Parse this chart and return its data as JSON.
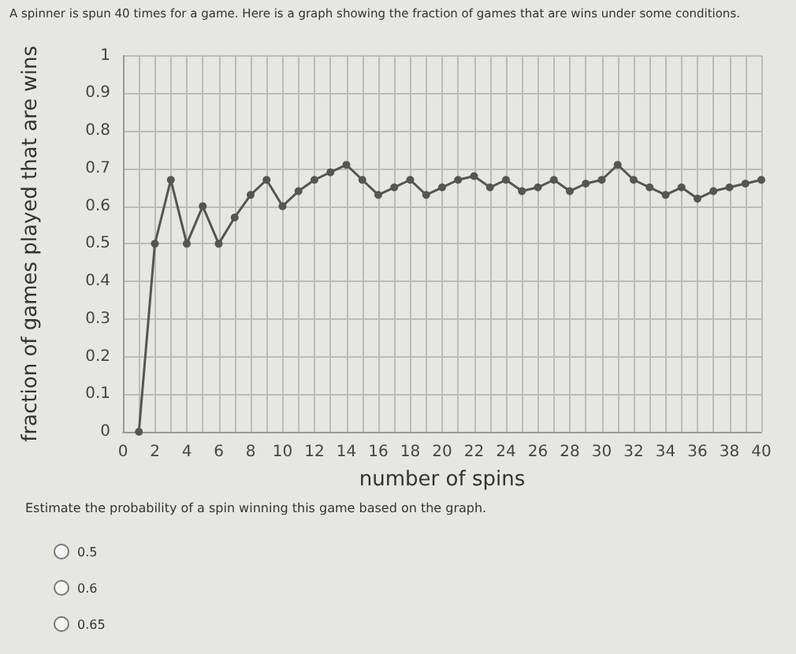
{
  "chart_data": {
    "type": "line",
    "title": "A spinner is spun 40 times for a game. Here is a graph showing the fraction of games that are wins under some conditions.",
    "xlabel": "number of spins",
    "ylabel": "fraction of games played that are wins",
    "x": [
      1,
      2,
      3,
      4,
      5,
      6,
      7,
      8,
      9,
      10,
      11,
      12,
      13,
      14,
      15,
      16,
      17,
      18,
      19,
      20,
      21,
      22,
      23,
      24,
      25,
      26,
      27,
      28,
      29,
      30,
      31,
      32,
      33,
      34,
      35,
      36,
      37,
      38,
      39,
      40
    ],
    "series": [
      {
        "color": "#555555",
        "values": [
          0,
          0.5,
          0.67,
          0.5,
          0.6,
          0.5,
          0.57,
          0.63,
          0.67,
          0.6,
          0.64,
          0.67,
          0.69,
          0.71,
          0.67,
          0.63,
          0.65,
          0.67,
          0.63,
          0.65,
          0.67,
          0.68,
          0.65,
          0.67,
          0.64,
          0.65,
          0.67,
          0.64,
          0.66,
          0.67,
          0.71,
          0.67,
          0.65,
          0.63,
          0.65,
          0.62,
          0.64,
          0.65,
          0.66,
          0.67
        ]
      }
    ],
    "xlim": [
      0,
      40
    ],
    "xticks": [
      0,
      2,
      4,
      6,
      8,
      10,
      12,
      14,
      16,
      18,
      20,
      22,
      24,
      26,
      28,
      30,
      32,
      34,
      36,
      38,
      40
    ],
    "ylim": [
      0,
      1
    ],
    "yticks": [
      0,
      0.1,
      0.2,
      0.3,
      0.4,
      0.5,
      0.6,
      0.7,
      0.8,
      0.9,
      1
    ],
    "grid": true,
    "marker": "circle",
    "line_style": "solid",
    "annotations": [
      "Estimate the probability of a spin winning this game based on the graph.",
      "0.5",
      "0.6",
      "0.65"
    ]
  }
}
